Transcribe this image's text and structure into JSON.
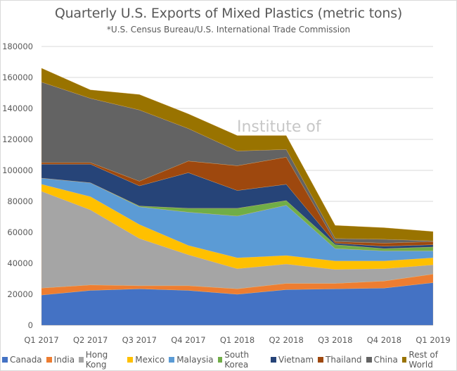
{
  "chart_data": {
    "type": "area",
    "stacked": true,
    "title": "Quarterly U.S. Exports of Mixed Plastics (metric tons)",
    "subtitle": "*U.S. Census Bureau/U.S. International Trade Commission",
    "xlabel": "",
    "ylabel": "",
    "ylim": [
      0,
      180000
    ],
    "yticks": [
      "0",
      "20000",
      "40000",
      "60000",
      "80000",
      "100000",
      "120000",
      "140000",
      "160000",
      "180000"
    ],
    "grid": true,
    "legend_position": "bottom",
    "watermark": "Institute of",
    "categories": [
      "Q1 2017",
      "Q2 2017",
      "Q3 2017",
      "Q4 2017",
      "Q1 2018",
      "Q2 2018",
      "Q3 2018",
      "Q4 2018",
      "Q1 2019"
    ],
    "series": [
      {
        "name": "Canada",
        "color": "#4472c4",
        "values": [
          19500,
          22500,
          23500,
          22500,
          20000,
          23000,
          23500,
          24000,
          27500
        ]
      },
      {
        "name": "India",
        "color": "#ed7d31",
        "values": [
          4500,
          3500,
          2000,
          3000,
          3500,
          4000,
          3500,
          4500,
          5500
        ]
      },
      {
        "name": "Hong Kong",
        "color": "#a5a5a5",
        "values": [
          62500,
          48500,
          30500,
          20000,
          13000,
          12500,
          9000,
          8000,
          6000
        ]
      },
      {
        "name": "Mexico",
        "color": "#ffc000",
        "values": [
          4500,
          8500,
          9000,
          6000,
          7000,
          5500,
          5500,
          5000,
          4500
        ]
      },
      {
        "name": "Malaysia",
        "color": "#5b9bd5",
        "values": [
          4000,
          9000,
          11500,
          21500,
          27000,
          32500,
          8000,
          6500,
          4500
        ]
      },
      {
        "name": "South Korea",
        "color": "#70ad47",
        "values": [
          0,
          0,
          500,
          2500,
          5000,
          3000,
          2500,
          1500,
          2500
        ]
      },
      {
        "name": "Vietnam",
        "color": "#264478",
        "values": [
          9000,
          12000,
          13000,
          23000,
          11500,
          10500,
          1000,
          1500,
          1500
        ]
      },
      {
        "name": "Thailand",
        "color": "#9e480e",
        "values": [
          1000,
          1000,
          3000,
          7500,
          16000,
          17500,
          1000,
          2000,
          2000
        ]
      },
      {
        "name": "China",
        "color": "#636363",
        "values": [
          52000,
          41500,
          46000,
          21000,
          9500,
          5000,
          2000,
          2500,
          500
        ]
      },
      {
        "name": "Rest of World",
        "color": "#997300",
        "values": [
          9000,
          5500,
          10000,
          9500,
          10000,
          9000,
          8500,
          7500,
          6000
        ]
      }
    ]
  }
}
